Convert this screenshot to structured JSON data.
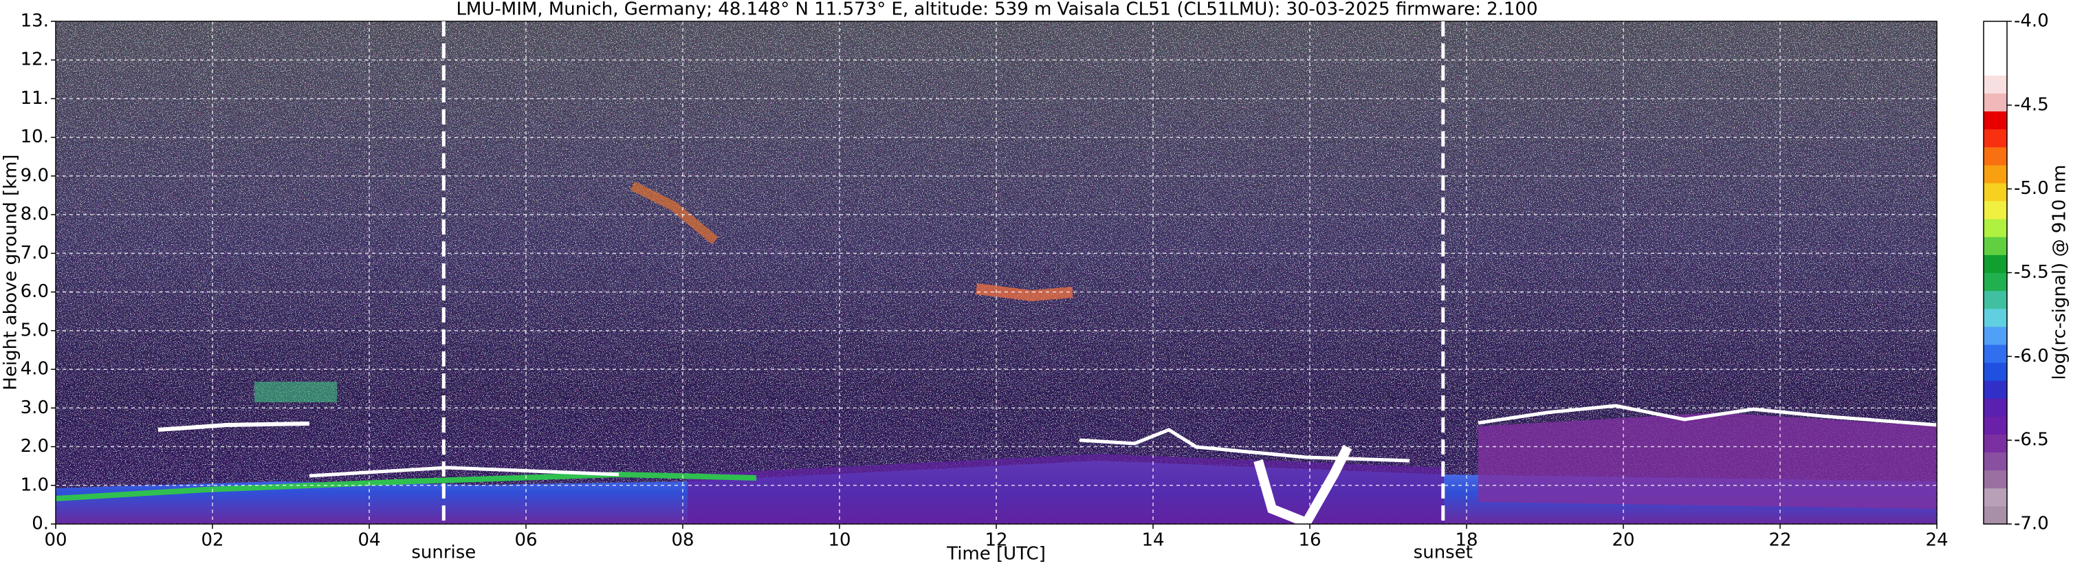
{
  "chart_data": {
    "type": "heatmap",
    "title": "LMU-MIM, Munich, Germany; 48.148° N 11.573° E, altitude: 539 m    Vaisala CL51 (CL51LMU): 30-03-2025    firmware: 2.100",
    "x_label": "Time [UTC]",
    "y_label": "Height above ground [km]",
    "xlim": [
      0,
      24
    ],
    "xticks": [
      {
        "value": 0,
        "label": "00"
      },
      {
        "value": 2,
        "label": "02"
      },
      {
        "value": 4,
        "label": "04"
      },
      {
        "value": 6,
        "label": "06"
      },
      {
        "value": 8,
        "label": "08"
      },
      {
        "value": 10,
        "label": "10"
      },
      {
        "value": 12,
        "label": "12"
      },
      {
        "value": 14,
        "label": "14"
      },
      {
        "value": 16,
        "label": "16"
      },
      {
        "value": 18,
        "label": "18"
      },
      {
        "value": 20,
        "label": "20"
      },
      {
        "value": 22,
        "label": "22"
      },
      {
        "value": 24,
        "label": "24"
      }
    ],
    "ylim": [
      0,
      13
    ],
    "yticks": [
      {
        "value": 0,
        "label": "0."
      },
      {
        "value": 1,
        "label": "1.0"
      },
      {
        "value": 2,
        "label": "2.0"
      },
      {
        "value": 3,
        "label": "3.0"
      },
      {
        "value": 4,
        "label": "4.0"
      },
      {
        "value": 5,
        "label": "5.0"
      },
      {
        "value": 6,
        "label": "6.0"
      },
      {
        "value": 7,
        "label": "7.0"
      },
      {
        "value": 8,
        "label": "8.0"
      },
      {
        "value": 9,
        "label": "9.0"
      },
      {
        "value": 10,
        "label": "10."
      },
      {
        "value": 11,
        "label": "11."
      },
      {
        "value": 12,
        "label": "12."
      },
      {
        "value": 13,
        "label": "13."
      }
    ],
    "grid": true,
    "annotations": [
      {
        "text": "sunrise",
        "x": 4.95
      },
      {
        "text": "sunset",
        "x": 17.7
      }
    ],
    "colorbar": {
      "label": "log(rc-signal) @ 910 nm",
      "lim": [
        -7,
        -4
      ],
      "ticks": [
        {
          "value": -4,
          "label": "-4.0"
        },
        {
          "value": -4.5,
          "label": "-4.5"
        },
        {
          "value": -5,
          "label": "-5.0"
        },
        {
          "value": -5.5,
          "label": "-5.5"
        },
        {
          "value": -6,
          "label": "-6.0"
        },
        {
          "value": -6.5,
          "label": "-6.5"
        },
        {
          "value": -7,
          "label": "-7.0"
        }
      ],
      "colors": [
        "#a890a8",
        "#b8a0b8",
        "#9a70a0",
        "#8a50a0",
        "#7a30a0",
        "#6a20a8",
        "#5a20b0",
        "#3030c8",
        "#2050e0",
        "#3070f0",
        "#50a0f8",
        "#60d0e0",
        "#40c0a0",
        "#20b050",
        "#10a030",
        "#60d040",
        "#b0f040",
        "#f0f040",
        "#f8d020",
        "#f8a010",
        "#f87010",
        "#f83010",
        "#e80000",
        "#f0b8b8",
        "#f8e0e0",
        "#ffffff",
        "#ffffff",
        "#ffffff"
      ]
    }
  }
}
